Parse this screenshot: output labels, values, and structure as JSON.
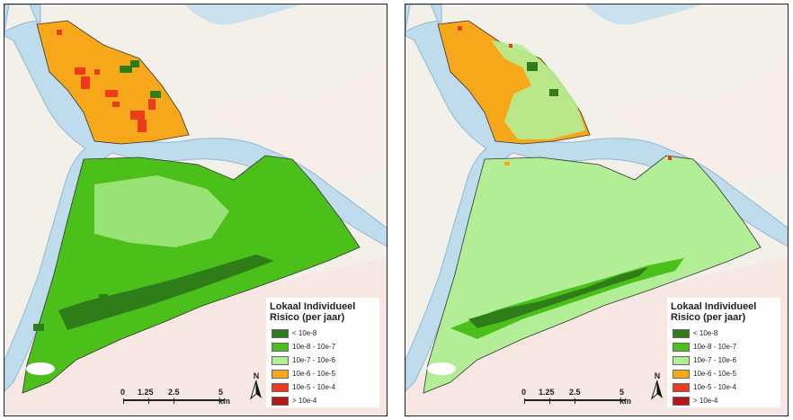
{
  "legend": {
    "title_line1": "Lokaal Individueel",
    "title_line2": "Risico (per jaar)",
    "items": [
      {
        "label": "< 10e-8",
        "color": "#2e7d19"
      },
      {
        "label": "10e-8 - 10e-7",
        "color": "#4cc01a"
      },
      {
        "label": "10e-7 - 10e-6",
        "color": "#b2ee96"
      },
      {
        "label": "10e-6 - 10e-5",
        "color": "#f7a81a"
      },
      {
        "label": "10e-5 - 10e-4",
        "color": "#ee3a1c"
      },
      {
        "label": "> 10e-4",
        "color": "#b2181a"
      }
    ]
  },
  "scale": {
    "labels": [
      "0",
      "1.25",
      "2.5",
      "5 km"
    ]
  },
  "north": {
    "label": "N"
  },
  "colors": {
    "river": "#bfdcec",
    "river_edge": "#8fb9d3",
    "background": "#f3f0ea"
  }
}
